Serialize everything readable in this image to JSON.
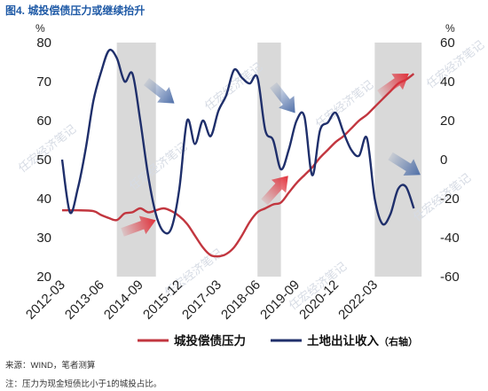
{
  "figure": {
    "title": "图4. 城投偿债压力或继续抬升",
    "source": "来源：WIND，笔者测算",
    "footnote": "注：压力为现金短债比小于1的城投占比。",
    "watermark": "任宏经济笔记",
    "colors": {
      "pressure": "#c2363f",
      "land": "#1f2f6b",
      "shade": "#d9d9d9",
      "arrow_blue": "#4f6fa8",
      "arrow_red": "#e0303a"
    }
  },
  "chart_data": {
    "type": "line",
    "x_tick_labels": [
      "2012-03",
      "2013-06",
      "2014-09",
      "2015-12",
      "2017-03",
      "2018-06",
      "2019-09",
      "2020-12",
      "2022-03"
    ],
    "y_left": {
      "unit": "%",
      "range": [
        20,
        80
      ],
      "ticks": [
        20,
        30,
        40,
        50,
        60,
        70,
        80
      ]
    },
    "y_right": {
      "unit": "%",
      "range": [
        -60,
        60
      ],
      "ticks": [
        -60,
        -40,
        -20,
        0,
        20,
        40,
        60
      ]
    },
    "shaded_periods": [
      {
        "start": "2013-12",
        "end": "2015-03"
      },
      {
        "start": "2018-06",
        "end": "2019-03"
      },
      {
        "start": "2022-03",
        "end": "2023-09"
      }
    ],
    "series": [
      {
        "name": "城投偿债压力",
        "axis": "left",
        "points": [
          [
            "2012-03",
            37
          ],
          [
            "2012-09",
            37
          ],
          [
            "2013-03",
            36.8
          ],
          [
            "2013-06",
            35.8
          ],
          [
            "2013-09",
            35
          ],
          [
            "2013-12",
            34.5
          ],
          [
            "2014-03",
            36.2
          ],
          [
            "2014-06",
            36.5
          ],
          [
            "2014-09",
            37.5
          ],
          [
            "2014-12",
            36.5
          ],
          [
            "2015-03",
            37
          ],
          [
            "2015-06",
            37.5
          ],
          [
            "2015-09",
            36.8
          ],
          [
            "2015-12",
            35.5
          ],
          [
            "2016-03",
            33.5
          ],
          [
            "2016-06",
            30.5
          ],
          [
            "2016-09",
            27.5
          ],
          [
            "2016-12",
            25.5
          ],
          [
            "2017-03",
            25.2
          ],
          [
            "2017-06",
            25.8
          ],
          [
            "2017-09",
            27.5
          ],
          [
            "2017-12",
            30.5
          ],
          [
            "2018-03",
            34
          ],
          [
            "2018-06",
            36.5
          ],
          [
            "2018-09",
            37.5
          ],
          [
            "2018-12",
            38.5
          ],
          [
            "2019-03",
            39
          ],
          [
            "2019-06",
            41.5
          ],
          [
            "2019-09",
            44
          ],
          [
            "2019-12",
            46
          ],
          [
            "2020-03",
            48
          ],
          [
            "2020-06",
            50.5
          ],
          [
            "2020-09",
            52.5
          ],
          [
            "2020-12",
            54.5
          ],
          [
            "2021-03",
            56
          ],
          [
            "2021-06",
            58
          ],
          [
            "2021-09",
            60
          ],
          [
            "2021-12",
            61.5
          ],
          [
            "2022-03",
            63.5
          ],
          [
            "2022-06",
            65.5
          ],
          [
            "2022-09",
            67.5
          ],
          [
            "2022-12",
            69.5
          ],
          [
            "2023-03",
            70.5
          ],
          [
            "2023-06",
            72
          ]
        ]
      },
      {
        "name": "土地出让收入（右轴）",
        "axis": "right",
        "points": [
          [
            "2012-03",
            0
          ],
          [
            "2012-06",
            -27
          ],
          [
            "2012-09",
            -15
          ],
          [
            "2012-12",
            5
          ],
          [
            "2013-03",
            30
          ],
          [
            "2013-06",
            45
          ],
          [
            "2013-09",
            56
          ],
          [
            "2013-12",
            52
          ],
          [
            "2014-03",
            40
          ],
          [
            "2014-06",
            44
          ],
          [
            "2014-09",
            20
          ],
          [
            "2014-12",
            -8
          ],
          [
            "2015-03",
            -28
          ],
          [
            "2015-06",
            -37
          ],
          [
            "2015-09",
            -35
          ],
          [
            "2015-12",
            -15
          ],
          [
            "2016-03",
            20
          ],
          [
            "2016-06",
            8
          ],
          [
            "2016-09",
            20
          ],
          [
            "2016-12",
            12
          ],
          [
            "2017-03",
            25
          ],
          [
            "2017-06",
            33
          ],
          [
            "2017-09",
            46
          ],
          [
            "2017-12",
            42
          ],
          [
            "2018-03",
            39
          ],
          [
            "2018-06",
            42
          ],
          [
            "2018-09",
            15
          ],
          [
            "2018-12",
            10
          ],
          [
            "2019-03",
            -5
          ],
          [
            "2019-06",
            5
          ],
          [
            "2019-09",
            20
          ],
          [
            "2019-12",
            22
          ],
          [
            "2020-03",
            -8
          ],
          [
            "2020-06",
            15
          ],
          [
            "2020-09",
            19
          ],
          [
            "2020-12",
            24
          ],
          [
            "2021-03",
            14
          ],
          [
            "2021-06",
            5
          ],
          [
            "2021-09",
            2
          ],
          [
            "2021-12",
            11
          ],
          [
            "2022-03",
            -20
          ],
          [
            "2022-06",
            -33
          ],
          [
            "2022-09",
            -28
          ],
          [
            "2022-12",
            -15
          ],
          [
            "2023-03",
            -14
          ],
          [
            "2023-06",
            -25
          ]
        ]
      }
    ],
    "legend": {
      "placement": "bottom",
      "pressure_label": "城投偿债压力",
      "land_label": "土地出让收入",
      "land_suffix": "（右轴）"
    },
    "annotations": [
      {
        "type": "arrow",
        "color": "red",
        "direction": "up-right",
        "at": "2014-06"
      },
      {
        "type": "arrow",
        "color": "blue",
        "direction": "down-right",
        "at": "2014-06"
      },
      {
        "type": "arrow",
        "color": "red",
        "direction": "up-right",
        "at": "2018-09"
      },
      {
        "type": "arrow",
        "color": "blue",
        "direction": "down-right",
        "at": "2018-09"
      },
      {
        "type": "arrow",
        "color": "red",
        "direction": "up-right",
        "at": "2023-03"
      },
      {
        "type": "arrow",
        "color": "blue",
        "direction": "down-right",
        "at": "2022-09"
      }
    ]
  }
}
